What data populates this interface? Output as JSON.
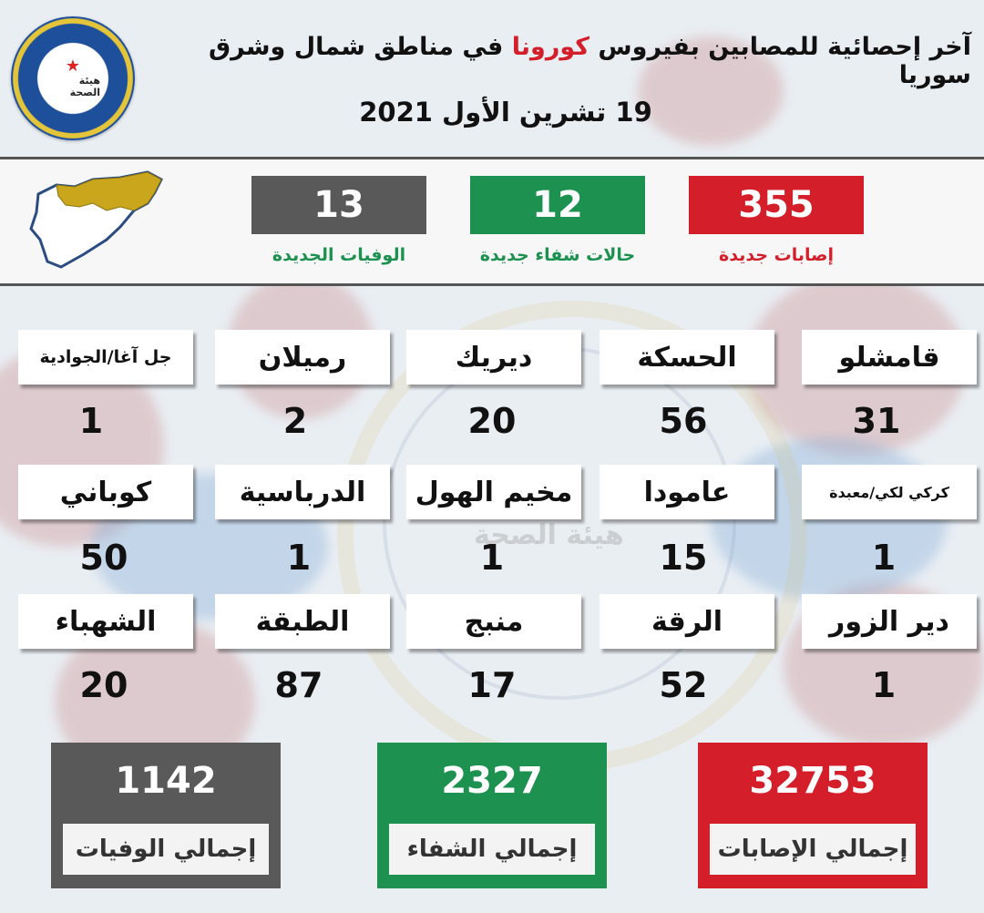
{
  "header": {
    "title_part1": "آخر إحصائية للمصابين بفيروس",
    "title_highlight": "كورونا",
    "title_part2": "في مناطق شمال وشرق سوريا",
    "date": "19 تشرين الأول  2021",
    "logo_text": "هيئة الصحة"
  },
  "daily": [
    {
      "value": "355",
      "label": "إصابات جديدة",
      "color": "#d41f2b",
      "label_color": "#d41f2b"
    },
    {
      "value": "12",
      "label": "حالات شفاء جديدة",
      "color": "#1c9150",
      "label_color": "#1c9150"
    },
    {
      "value": "13",
      "label": "الوفيات الجديدة",
      "color": "#595959",
      "label_color": "#1c9150"
    }
  ],
  "regions": [
    {
      "name": "قامشلو",
      "count": "31"
    },
    {
      "name": "الحسكة",
      "count": "56"
    },
    {
      "name": "ديريك",
      "count": "20"
    },
    {
      "name": "رميلان",
      "count": "2"
    },
    {
      "name": "جل آغا/الجوادية",
      "count": "1"
    },
    {
      "name": "كركي لكي/معبدة",
      "count": "1"
    },
    {
      "name": "عامودا",
      "count": "15"
    },
    {
      "name": "مخيم الهول",
      "count": "1"
    },
    {
      "name": "الدرباسية",
      "count": "1"
    },
    {
      "name": "كوباني",
      "count": "50"
    },
    {
      "name": "دير الزور",
      "count": "1"
    },
    {
      "name": "الرقة",
      "count": "52"
    },
    {
      "name": "منبج",
      "count": "17"
    },
    {
      "name": "الطبقة",
      "count": "87"
    },
    {
      "name": "الشهباء",
      "count": "20"
    }
  ],
  "totals": [
    {
      "value": "32753",
      "label": "إجمالي الإصابات",
      "color": "#d41f2b"
    },
    {
      "value": "2327",
      "label": "إجمالي الشفاء",
      "color": "#1c9150"
    },
    {
      "value": "1142",
      "label": "إجمالي الوفيات",
      "color": "#595959"
    }
  ],
  "map_colors": {
    "region": "#c9a61b",
    "country": "#ffffff",
    "border": "#2b4c80"
  }
}
